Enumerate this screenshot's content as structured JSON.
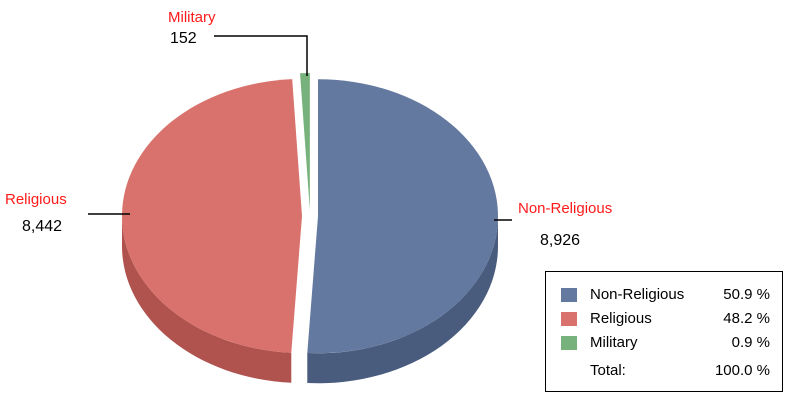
{
  "chart_data": {
    "type": "pie",
    "slices": [
      {
        "name": "Non-Religious",
        "value": 8926,
        "value_label": "8,926",
        "percent": "50.9 %",
        "color": "#6479a0",
        "side_color": "#4a5c7e"
      },
      {
        "name": "Religious",
        "value": 8442,
        "value_label": "8,442",
        "percent": "48.2 %",
        "color": "#d9726c",
        "side_color": "#b0524d"
      },
      {
        "name": "Military",
        "value": 152,
        "value_label": "152",
        "percent": "0.9 %",
        "color": "#77b27c",
        "side_color": "#55885a"
      }
    ],
    "total": {
      "label": "Total:",
      "percent": "100.0 %"
    },
    "legend_position": "bottom-right",
    "style": "3d-exploded"
  }
}
